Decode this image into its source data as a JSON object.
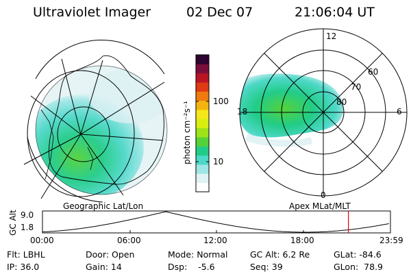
{
  "header": {
    "instrument": "Ultraviolet Imager",
    "date": "02 Dec 07",
    "time": "21:06:04 UT"
  },
  "geo_panel": {
    "label": "Geographic Lat/Lon"
  },
  "polar_panel": {
    "label": "Apex MLat/MLT",
    "mlt_labels": [
      "12",
      "18",
      "6",
      "0"
    ],
    "mlat_labels": [
      "60",
      "70",
      "80"
    ]
  },
  "colorbar": {
    "unit_label": "photon cm⁻²s⁻¹",
    "ticks": [
      "100",
      "10"
    ],
    "colors": [
      "#ffffff",
      "#dff3f5",
      "#9fe6e6",
      "#4ed8c8",
      "#22cc88",
      "#55d23a",
      "#9ee21a",
      "#d8ef10",
      "#f4e81a",
      "#f4b410",
      "#ee7a10",
      "#e03a14",
      "#b81424",
      "#7a0e3a",
      "#2e0430"
    ]
  },
  "altitude_plot": {
    "ylabel": "GC Alt",
    "yticks": [
      "9.0",
      "1.8"
    ],
    "xticks": [
      "00:00",
      "06:00",
      "12:00",
      "18:00",
      "23:59"
    ],
    "current_time_hours": 21.1
  },
  "info": {
    "row1": {
      "filter": "Flt: LBHL",
      "door": "Door: Open",
      "mode": "Mode: Normal",
      "gc_alt": "GC Alt: 6.2 Re",
      "glat": "GLat: -84.6"
    },
    "row2": {
      "ip": "IP: 36.0",
      "gain": "Gain: 14",
      "dsp": "Dsp:    -5.6",
      "seq": "Seq: 39",
      "glon": "GLon:  78.9"
    }
  }
}
